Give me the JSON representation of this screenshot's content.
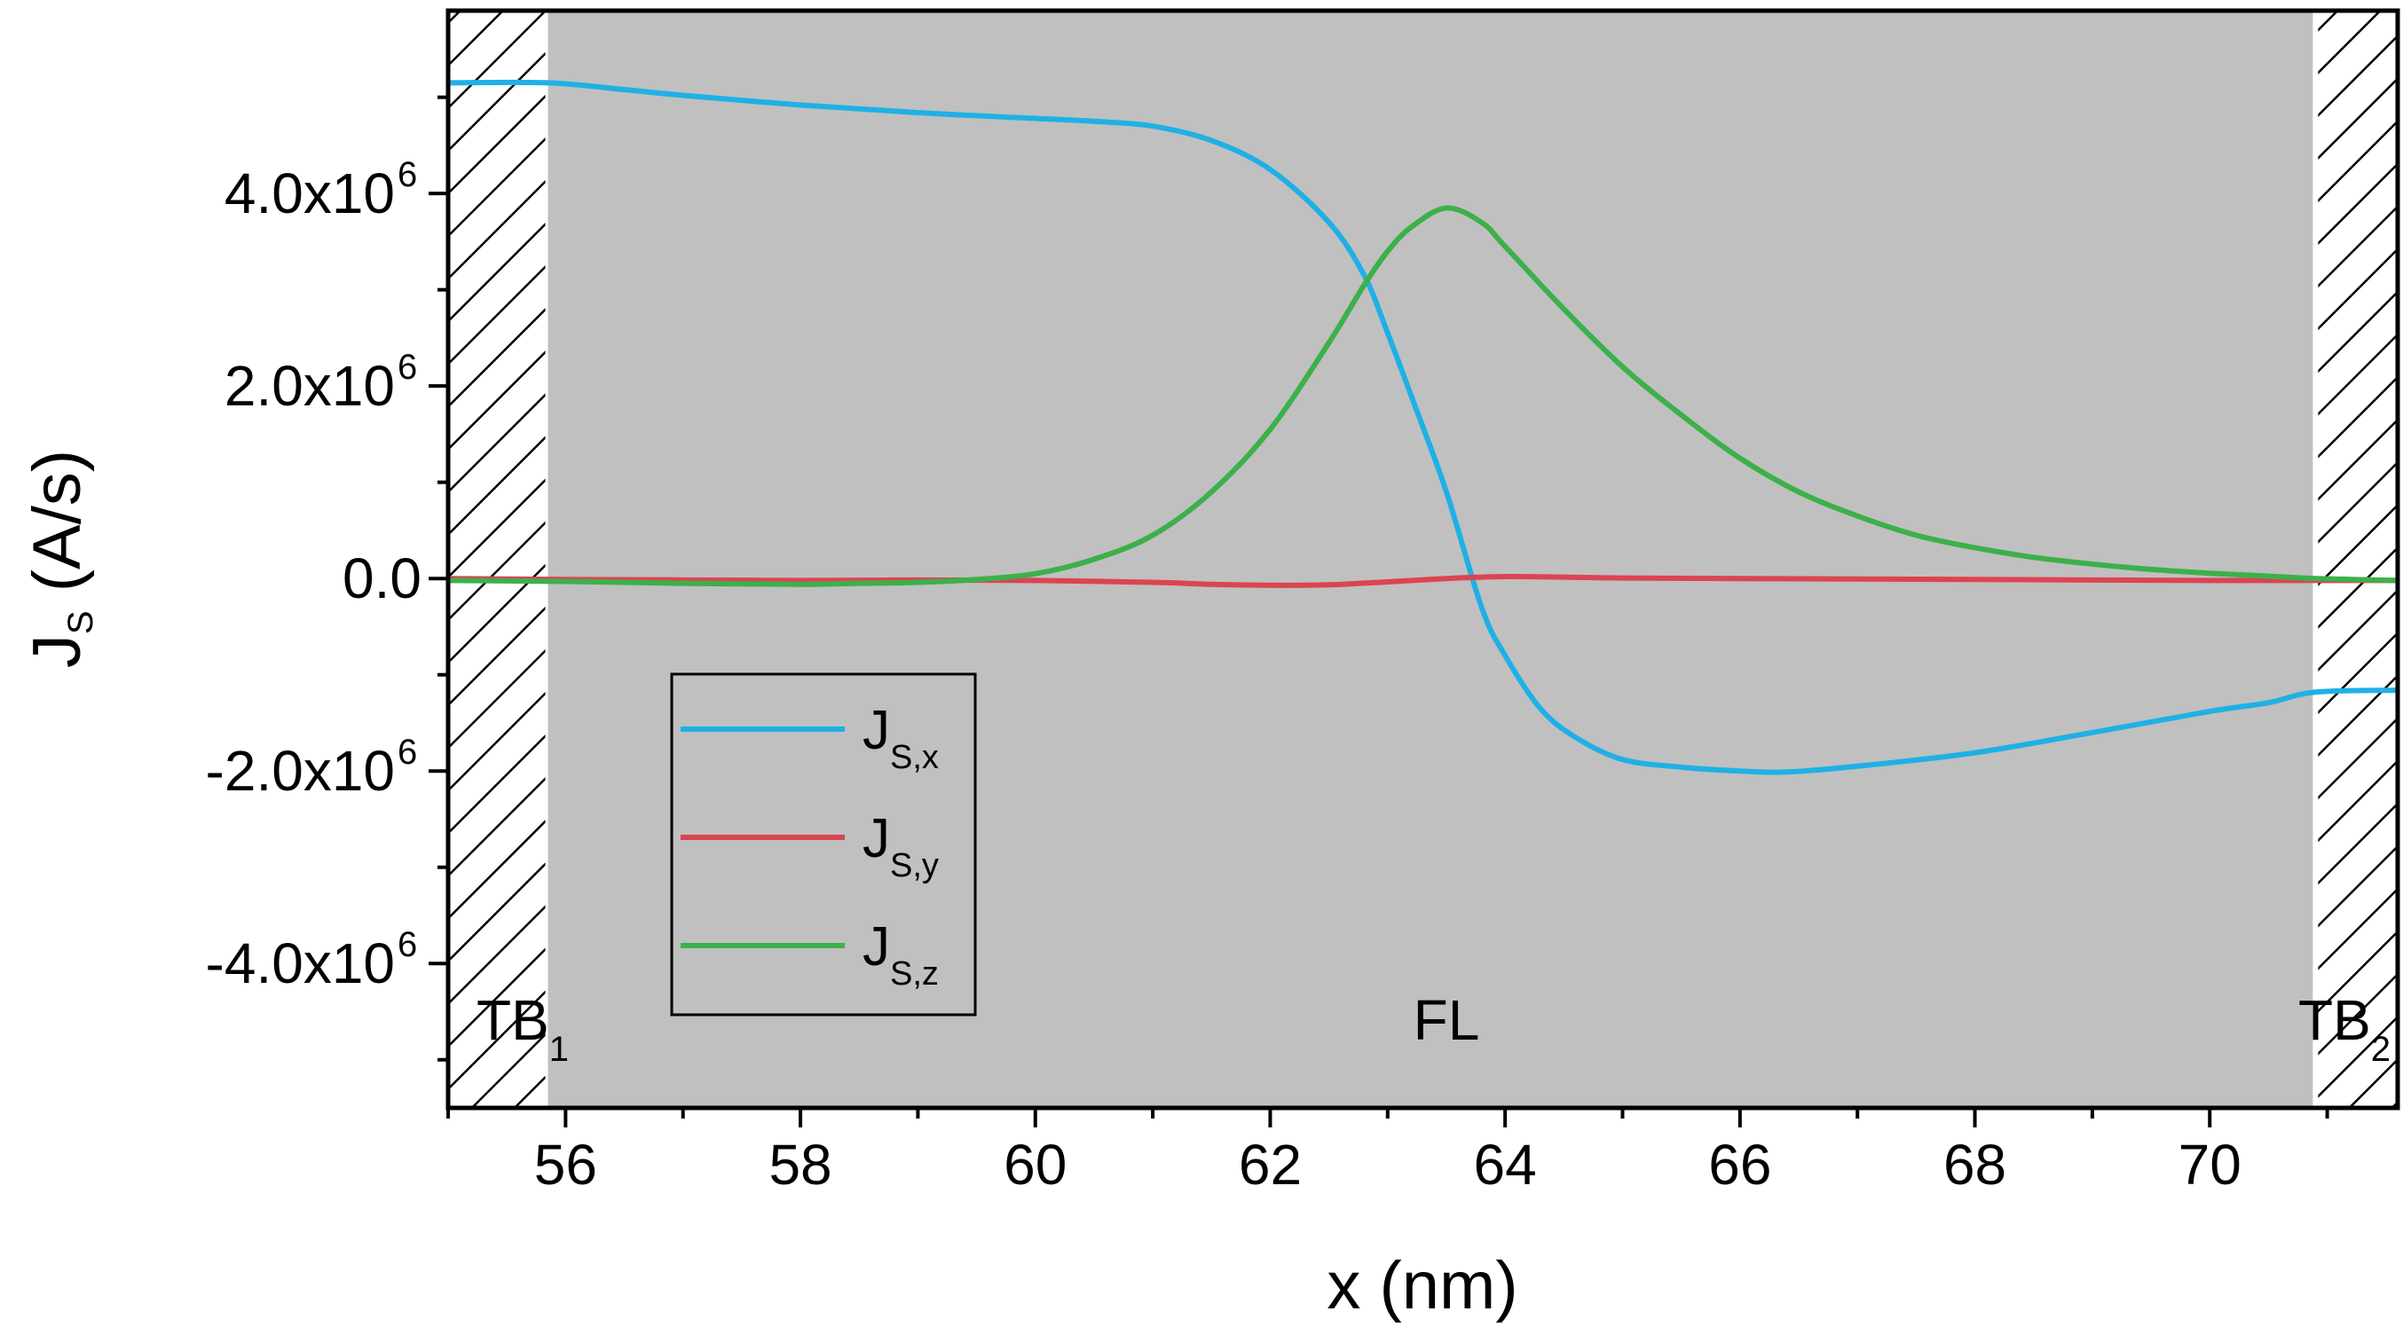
{
  "chart_data": {
    "type": "line",
    "title": "",
    "xlabel": "x (nm)",
    "ylabel": {
      "main": "J",
      "sub": "S",
      "unit": " (A/s)"
    },
    "xlim": [
      55,
      71.6
    ],
    "ylim": [
      -5500000.0,
      5900000.0
    ],
    "x_ticks": [
      {
        "value": 56,
        "label": "56"
      },
      {
        "value": 58,
        "label": "58"
      },
      {
        "value": 60,
        "label": "60"
      },
      {
        "value": 62,
        "label": "62"
      },
      {
        "value": 64,
        "label": "64"
      },
      {
        "value": 66,
        "label": "66"
      },
      {
        "value": 68,
        "label": "68"
      },
      {
        "value": 70,
        "label": "70"
      }
    ],
    "y_ticks": [
      {
        "value": 4000000,
        "mantissa": "4.0x10",
        "exp": "6"
      },
      {
        "value": 2000000,
        "mantissa": "2.0x10",
        "exp": "6"
      },
      {
        "value": 0,
        "mantissa": "0.0",
        "exp": ""
      },
      {
        "value": -2000000,
        "mantissa": "-2.0x10",
        "exp": "6"
      },
      {
        "value": -4000000,
        "mantissa": "-4.0x10",
        "exp": "6"
      }
    ],
    "regions": [
      {
        "name": "TB",
        "sub": "1",
        "x_start": 55,
        "x_end": 55.85,
        "style": "hatched"
      },
      {
        "name": "FL",
        "sub": "",
        "x_start": 55.85,
        "x_end": 70.9,
        "style": "gray",
        "label_x": 63.5
      },
      {
        "name": "TB",
        "sub": "2",
        "x_start": 70.9,
        "x_end": 71.6,
        "style": "hatched"
      }
    ],
    "series": [
      {
        "name": "J",
        "sub": "S,x",
        "color": "#1fb0e6",
        "x": [
          55,
          55.85,
          56.5,
          57,
          58,
          59,
          60,
          60.5,
          61,
          61.5,
          62,
          62.5,
          62.8,
          63,
          63.2,
          63.5,
          63.8,
          64,
          64.3,
          64.6,
          65,
          65.5,
          66,
          66.4,
          67,
          68,
          69,
          70,
          70.5,
          70.9,
          71.6
        ],
        "y": [
          5150000,
          5150000,
          5080000,
          5020000,
          4920000,
          4840000,
          4780000,
          4750000,
          4700000,
          4550000,
          4250000,
          3700000,
          3150000,
          2550000,
          1900000,
          900000,
          -300000,
          -800000,
          -1350000,
          -1650000,
          -1880000,
          -1960000,
          -2000000,
          -2010000,
          -1950000,
          -1810000,
          -1600000,
          -1380000,
          -1290000,
          -1180000,
          -1160000
        ]
      },
      {
        "name": "J",
        "sub": "S,y",
        "color": "#dc4453",
        "x": [
          55,
          56,
          57,
          58,
          59,
          60,
          61,
          61.5,
          62,
          62.5,
          63,
          63.5,
          64,
          64.5,
          65,
          66,
          67,
          68,
          69,
          70,
          71,
          71.6
        ],
        "y": [
          0,
          -10000,
          -15000,
          -20000,
          -15000,
          -20000,
          -40000,
          -60000,
          -70000,
          -65000,
          -35000,
          0,
          20000,
          15000,
          5000,
          0,
          -5000,
          -10000,
          -15000,
          -20000,
          -20000,
          -20000
        ]
      },
      {
        "name": "J",
        "sub": "S,z",
        "color": "#3cb04a",
        "x": [
          55,
          56,
          57,
          58,
          58.5,
          59,
          59.5,
          60,
          60.5,
          61,
          61.5,
          62,
          62.5,
          62.8,
          63,
          63.2,
          63.5,
          63.8,
          64,
          64.5,
          65,
          65.5,
          66,
          66.5,
          67,
          67.5,
          68,
          68.5,
          69,
          69.5,
          70,
          70.5,
          70.9,
          71.6
        ],
        "y": [
          -20000,
          -30000,
          -50000,
          -60000,
          -50000,
          -40000,
          -10000,
          50000,
          200000,
          450000,
          900000,
          1550000,
          2450000,
          3050000,
          3400000,
          3650000,
          3850000,
          3700000,
          3450000,
          2800000,
          2200000,
          1700000,
          1250000,
          900000,
          650000,
          450000,
          320000,
          220000,
          150000,
          95000,
          55000,
          25000,
          0,
          -20000
        ]
      }
    ],
    "legend": {
      "position": "bottom-left"
    }
  }
}
